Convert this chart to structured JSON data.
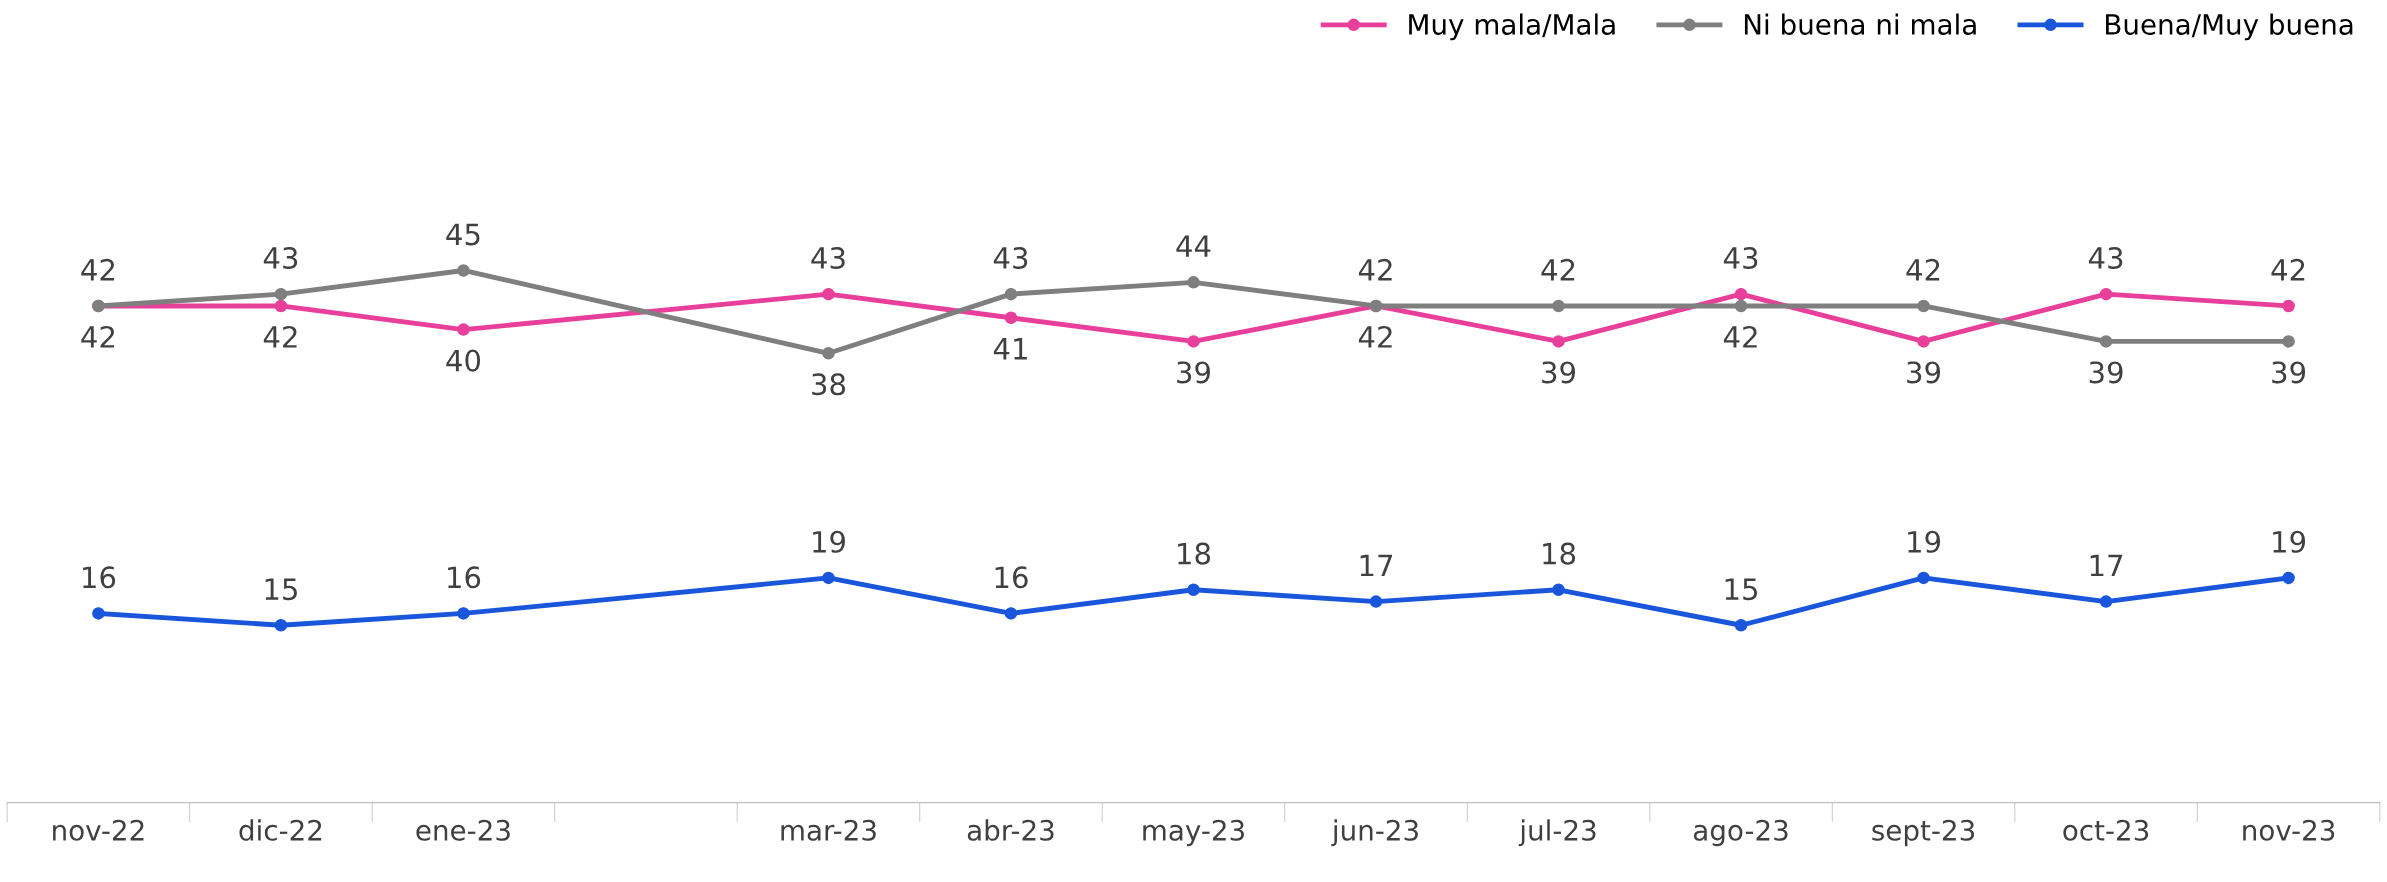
{
  "chart_data": {
    "type": "line",
    "categories": [
      "nov-22",
      "dic-22",
      "ene-23",
      null,
      "mar-23",
      "abr-23",
      "may-23",
      "jun-23",
      "jul-23",
      "ago-23",
      "sept-23",
      "oct-23",
      "nov-23"
    ],
    "series": [
      {
        "name": "Muy mala/Mala",
        "color": "#e8409a",
        "values": [
          42,
          42,
          40,
          null,
          43,
          41,
          39,
          42,
          39,
          43,
          39,
          43,
          42
        ]
      },
      {
        "name": "Ni buena ni mala",
        "color": "#7f7f7f",
        "values": [
          42,
          43,
          45,
          null,
          38,
          43,
          44,
          42,
          42,
          42,
          42,
          39,
          39
        ]
      },
      {
        "name": "Buena/Muy buena",
        "color": "#1a56db",
        "values": [
          16,
          15,
          16,
          null,
          19,
          16,
          18,
          17,
          18,
          15,
          19,
          17,
          19
        ]
      }
    ],
    "tick_labels": "x",
    "data_labels": true,
    "marker": "circle",
    "line_style": "solid",
    "grid": false,
    "legend": "top right"
  }
}
